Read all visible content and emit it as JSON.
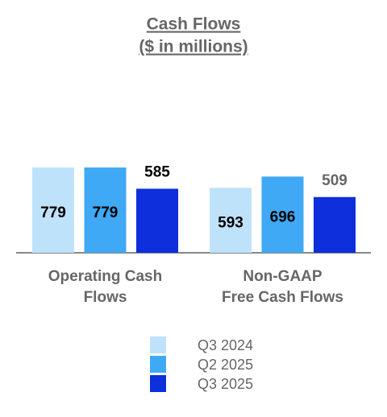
{
  "chart_data": {
    "type": "bar",
    "title": "Cash Flows",
    "subtitle": "($ in millions)",
    "categories": [
      "Operating Cash\nFlows",
      "Non-GAAP\nFree Cash Flows"
    ],
    "series": [
      {
        "name": "Q3 2024",
        "color": "#bfe2fb",
        "values": [
          779,
          593
        ]
      },
      {
        "name": "Q2 2025",
        "color": "#3fa9f5",
        "values": [
          779,
          696
        ]
      },
      {
        "name": "Q3 2025",
        "color": "#0d2fdc",
        "values": [
          585,
          509
        ]
      }
    ]
  }
}
